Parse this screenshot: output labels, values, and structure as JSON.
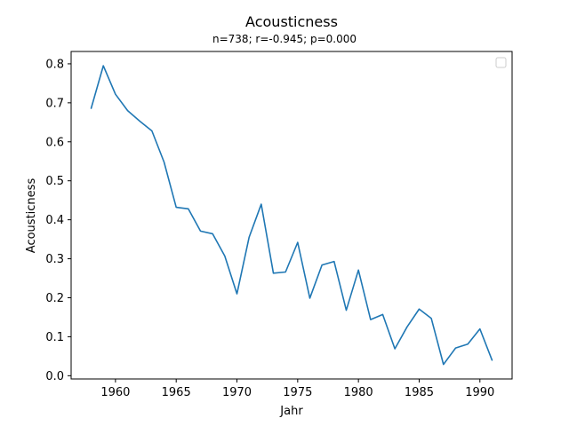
{
  "chart_data": {
    "type": "line",
    "title": "Acousticness",
    "subtitle": "n=738; r=-0.945; p=0.000",
    "xlabel": "Jahr",
    "ylabel": "Acousticness",
    "xlim": [
      1956.35,
      1992.65
    ],
    "ylim": [
      -0.0083,
      0.8317
    ],
    "xticks": [
      1960,
      1965,
      1970,
      1975,
      1980,
      1985,
      1990
    ],
    "yticks": [
      0.0,
      0.1,
      0.2,
      0.3,
      0.4,
      0.5,
      0.6,
      0.7,
      0.8
    ],
    "ytick_labels": [
      "0.0",
      "0.1",
      "0.2",
      "0.3",
      "0.4",
      "0.5",
      "0.6",
      "0.7",
      "0.8"
    ],
    "grid": false,
    "legend": {
      "placement": "top-right",
      "entries": []
    },
    "series": [
      {
        "color": "#1f77b4",
        "x": [
          1958,
          1959,
          1960,
          1961,
          1962,
          1963,
          1964,
          1965,
          1966,
          1967,
          1968,
          1969,
          1970,
          1971,
          1972,
          1973,
          1974,
          1975,
          1976,
          1977,
          1978,
          1979,
          1980,
          1981,
          1982,
          1983,
          1984,
          1985,
          1986,
          1987,
          1988,
          1989,
          1990,
          1991
        ],
        "values": [
          0.686,
          0.795,
          0.722,
          0.68,
          0.653,
          0.628,
          0.548,
          0.432,
          0.428,
          0.371,
          0.364,
          0.307,
          0.21,
          0.355,
          0.44,
          0.263,
          0.266,
          0.342,
          0.199,
          0.284,
          0.293,
          0.168,
          0.271,
          0.144,
          0.157,
          0.069,
          0.125,
          0.171,
          0.147,
          0.029,
          0.071,
          0.081,
          0.12,
          0.04
        ]
      }
    ]
  }
}
